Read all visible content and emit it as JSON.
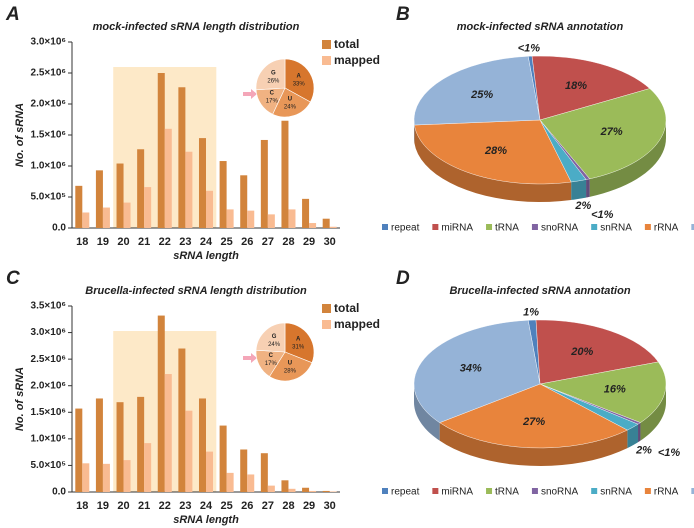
{
  "chart_data": [
    {
      "type": "bar",
      "panel": "A",
      "title": "mock-infected sRNA length distribution",
      "x_label": "sRNA length",
      "y_label": "No. of sRNA",
      "categories": [
        18,
        19,
        20,
        21,
        22,
        23,
        24,
        25,
        26,
        27,
        28,
        29,
        30
      ],
      "series": [
        {
          "name": "total",
          "color": "#d2843c",
          "values": [
            680000,
            930000,
            1040000,
            1270000,
            2500000,
            2270000,
            1450000,
            1080000,
            850000,
            1420000,
            1730000,
            470000,
            150000
          ]
        },
        {
          "name": "mapped",
          "color": "#f9bb92",
          "values": [
            250000,
            330000,
            410000,
            660000,
            1600000,
            1230000,
            600000,
            300000,
            280000,
            220000,
            300000,
            80000,
            20000
          ]
        }
      ],
      "ylim": [
        0,
        3000000
      ],
      "yticks": [
        {
          "value": 0,
          "label": "0.0"
        },
        {
          "value": 500000,
          "label": "5.0×10⁵"
        },
        {
          "value": 1000000,
          "label": "1.0×10⁶"
        },
        {
          "value": 1500000,
          "label": "1.5×10⁶"
        },
        {
          "value": 2000000,
          "label": "2.0×10⁶"
        },
        {
          "value": 2500000,
          "label": "2.5×10⁶"
        },
        {
          "value": 3000000,
          "label": "3.0×10⁶"
        }
      ],
      "highlight_range": [
        20,
        24
      ],
      "inset": {
        "type": "pie",
        "categories": [
          "A",
          "U",
          "C",
          "G"
        ],
        "values": [
          33,
          24,
          17,
          26
        ],
        "value_labels": [
          "33%",
          "24%",
          "17%",
          "26%"
        ],
        "colors": [
          "#d7762d",
          "#e89758",
          "#f0b282",
          "#f7d0b3"
        ]
      }
    },
    {
      "type": "pie3d",
      "panel": "B",
      "title": "mock-infected sRNA annotation",
      "categories": [
        "repeat",
        "miRNA",
        "tRNA",
        "snoRNA",
        "snRNA",
        "rRNA",
        "other"
      ],
      "values": [
        0.5,
        18,
        27,
        0.5,
        2,
        28,
        25
      ],
      "value_labels": [
        "<1%",
        "18%",
        "27%",
        "<1%",
        "2%",
        "28%",
        "25%"
      ],
      "colors": [
        "#4f81bd",
        "#c0504d",
        "#9bbb59",
        "#8064a2",
        "#4bacc6",
        "#e8843c",
        "#95b3d7"
      ]
    },
    {
      "type": "bar",
      "panel": "C",
      "title": "Brucella-infected sRNA length distribution",
      "x_label": "sRNA length",
      "y_label": "No. of sRNA",
      "categories": [
        18,
        19,
        20,
        21,
        22,
        23,
        24,
        25,
        26,
        27,
        28,
        29,
        30
      ],
      "series": [
        {
          "name": "total",
          "color": "#d2843c",
          "values": [
            1570000,
            1760000,
            1690000,
            1790000,
            3320000,
            2700000,
            1760000,
            1250000,
            800000,
            730000,
            220000,
            80000,
            20000
          ]
        },
        {
          "name": "mapped",
          "color": "#f9bb92",
          "values": [
            540000,
            530000,
            600000,
            920000,
            2220000,
            1530000,
            760000,
            360000,
            330000,
            120000,
            60000,
            20000,
            10000
          ]
        }
      ],
      "ylim": [
        0,
        3500000
      ],
      "yticks": [
        {
          "value": 0,
          "label": "0.0"
        },
        {
          "value": 500000,
          "label": "5.0×10⁵"
        },
        {
          "value": 1000000,
          "label": "1.0×10⁶"
        },
        {
          "value": 1500000,
          "label": "1.5×10⁶"
        },
        {
          "value": 2000000,
          "label": "2.0×10⁶"
        },
        {
          "value": 2500000,
          "label": "2.5×10⁶"
        },
        {
          "value": 3000000,
          "label": "3.0×10⁶"
        },
        {
          "value": 3500000,
          "label": "3.5×10⁶"
        }
      ],
      "highlight_range": [
        20,
        24
      ],
      "inset": {
        "type": "pie",
        "categories": [
          "A",
          "U",
          "C",
          "G"
        ],
        "values": [
          31,
          28,
          17,
          24
        ],
        "value_labels": [
          "31%",
          "28%",
          "17%",
          "24%"
        ],
        "colors": [
          "#d7762d",
          "#e89758",
          "#f0b282",
          "#f7d0b3"
        ]
      }
    },
    {
      "type": "pie3d",
      "panel": "D",
      "title": "Brucella-infected sRNA annotation",
      "categories": [
        "repeat",
        "miRNA",
        "tRNA",
        "snoRNA",
        "snRNA",
        "rRNA",
        "other"
      ],
      "values": [
        1,
        20,
        16,
        0.5,
        2,
        27,
        34
      ],
      "value_labels": [
        "1%",
        "20%",
        "16%",
        "<1%",
        "2%",
        "27%",
        "34%"
      ],
      "colors": [
        "#4f81bd",
        "#c0504d",
        "#9bbb59",
        "#8064a2",
        "#4bacc6",
        "#e8843c",
        "#95b3d7"
      ]
    }
  ]
}
